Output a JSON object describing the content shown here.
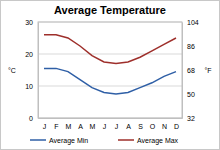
{
  "chart_data": {
    "type": "line",
    "title": "Average Temperature",
    "categories": [
      "J",
      "F",
      "M",
      "A",
      "M",
      "J",
      "J",
      "A",
      "S",
      "O",
      "N",
      "D"
    ],
    "series": [
      {
        "name": "Average Min",
        "color": "#2f5fa6",
        "values": [
          15.5,
          15.5,
          14.5,
          12,
          9.5,
          8,
          7.5,
          8,
          9.5,
          11,
          13,
          14.5
        ]
      },
      {
        "name": "Average Max",
        "color": "#9e2f2b",
        "values": [
          26,
          26,
          25,
          22.5,
          19.5,
          17.5,
          17,
          17.5,
          19,
          21,
          23,
          25
        ]
      }
    ],
    "ylabel": "°C",
    "y2label": "°F",
    "ylim": [
      0,
      30
    ],
    "yticks": [
      0,
      10,
      20,
      30
    ],
    "y2lim": [
      32,
      104
    ],
    "y2ticks": [
      32,
      50,
      68,
      86,
      104
    ],
    "grid": true,
    "legend": "bottom"
  }
}
